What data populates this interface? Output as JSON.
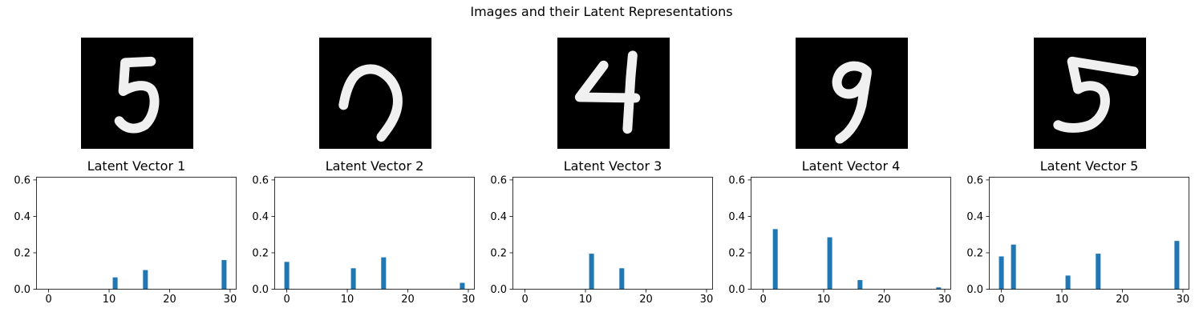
{
  "title": "Images and their Latent Representations",
  "chart_data": [
    {
      "type": "bar",
      "title": "Latent Vector 1",
      "digit": "5",
      "x": [
        11,
        16,
        29
      ],
      "values": [
        0.065,
        0.105,
        0.16
      ],
      "xlim": [
        -2,
        31
      ],
      "ylim": [
        0,
        0.615
      ],
      "xticks": [
        0,
        10,
        20,
        30
      ],
      "yticks": [
        0.0,
        0.2,
        0.4,
        0.6
      ],
      "color": "#1f77b4"
    },
    {
      "type": "bar",
      "title": "Latent Vector 2",
      "digit": "7",
      "x": [
        0,
        11,
        16,
        29
      ],
      "values": [
        0.15,
        0.115,
        0.175,
        0.035
      ],
      "xlim": [
        -2,
        31
      ],
      "ylim": [
        0,
        0.615
      ],
      "xticks": [
        0,
        10,
        20,
        30
      ],
      "yticks": [
        0.0,
        0.2,
        0.4,
        0.6
      ],
      "color": "#1f77b4"
    },
    {
      "type": "bar",
      "title": "Latent Vector 3",
      "digit": "4",
      "x": [
        11,
        16
      ],
      "values": [
        0.195,
        0.115
      ],
      "xlim": [
        -2,
        31
      ],
      "ylim": [
        0,
        0.615
      ],
      "xticks": [
        0,
        10,
        20,
        30
      ],
      "yticks": [
        0.0,
        0.2,
        0.4,
        0.6
      ],
      "color": "#1f77b4"
    },
    {
      "type": "bar",
      "title": "Latent Vector 4",
      "digit": "9",
      "x": [
        2,
        11,
        16,
        29
      ],
      "values": [
        0.33,
        0.285,
        0.05,
        0.01
      ],
      "xlim": [
        -2,
        31
      ],
      "ylim": [
        0,
        0.615
      ],
      "xticks": [
        0,
        10,
        20,
        30
      ],
      "yticks": [
        0.0,
        0.2,
        0.4,
        0.6
      ],
      "color": "#1f77b4"
    },
    {
      "type": "bar",
      "title": "Latent Vector 5",
      "digit": "5",
      "x": [
        0,
        2,
        11,
        16,
        29
      ],
      "values": [
        0.18,
        0.245,
        0.075,
        0.195,
        0.265
      ],
      "xlim": [
        -2,
        31
      ],
      "ylim": [
        0,
        0.615
      ],
      "xticks": [
        0,
        10,
        20,
        30
      ],
      "yticks": [
        0.0,
        0.2,
        0.4,
        0.6
      ],
      "color": "#1f77b4"
    }
  ]
}
